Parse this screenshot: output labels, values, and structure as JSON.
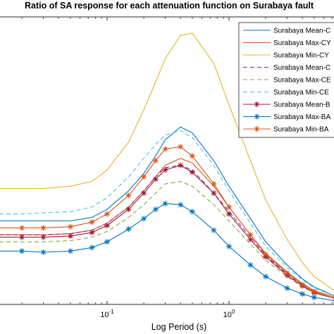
{
  "chart_data": {
    "type": "line",
    "title": "Ratio of SA response for each attenuation function on Surabaya fault",
    "xlabel": "Log Period (s)",
    "ylabel": "",
    "xscale": "log",
    "xlim": [
      0.01,
      10
    ],
    "x_ticks": [
      {
        "value": 0.1,
        "base": "10",
        "exp": "-1"
      },
      {
        "value": 1,
        "base": "10",
        "exp": "0"
      }
    ],
    "grid": false,
    "legend_position": "top-right",
    "series": [
      {
        "name": "Surabaya Mean-C",
        "color": "#0072BD",
        "style": "solid",
        "marker": "none",
        "x": [
          0.01,
          0.02,
          0.03,
          0.05,
          0.075,
          0.1,
          0.15,
          0.2,
          0.25,
          0.3,
          0.4,
          0.5,
          0.75,
          1,
          1.5,
          2,
          3,
          4,
          5,
          7.5,
          10
        ],
        "y": [
          0.72,
          0.72,
          0.72,
          0.72,
          0.75,
          0.82,
          0.98,
          1.13,
          1.28,
          1.42,
          1.53,
          1.48,
          1.24,
          1.02,
          0.74,
          0.54,
          0.34,
          0.22,
          0.15,
          0.07,
          0.03
        ]
      },
      {
        "name": "Surabaya Max-CY",
        "color": "#D95319",
        "style": "solid",
        "marker": "none",
        "x": [
          0.01,
          0.02,
          0.03,
          0.05,
          0.075,
          0.1,
          0.15,
          0.2,
          0.25,
          0.3,
          0.4,
          0.5,
          0.75,
          1,
          1.5,
          2,
          3,
          4,
          5,
          7.5,
          10
        ],
        "y": [
          0.6,
          0.6,
          0.6,
          0.61,
          0.64,
          0.7,
          0.84,
          0.98,
          1.1,
          1.2,
          1.26,
          1.22,
          1.02,
          0.84,
          0.6,
          0.44,
          0.28,
          0.18,
          0.12,
          0.06,
          0.02
        ]
      },
      {
        "name": "Surabaya Min-CY",
        "color": "#EDB120",
        "style": "solid",
        "marker": "none",
        "x": [
          0.01,
          0.02,
          0.03,
          0.05,
          0.075,
          0.1,
          0.15,
          0.2,
          0.25,
          0.3,
          0.4,
          0.5,
          0.75,
          1,
          1.5,
          2,
          3,
          4,
          5,
          7.5,
          10
        ],
        "y": [
          1.0,
          1.0,
          1.0,
          1.02,
          1.06,
          1.16,
          1.4,
          1.68,
          1.92,
          2.12,
          2.32,
          2.34,
          2.08,
          1.72,
          1.24,
          0.9,
          0.56,
          0.36,
          0.24,
          0.11,
          0.05
        ]
      },
      {
        "name": "Surabaya Mean-C",
        "color": "#7E2F8E",
        "style": "dashed",
        "marker": "none",
        "x": [
          0.01,
          0.02,
          0.03,
          0.05,
          0.075,
          0.1,
          0.15,
          0.2,
          0.25,
          0.3,
          0.4,
          0.5,
          0.75,
          1,
          1.5,
          2,
          3,
          4,
          5,
          7.5,
          10
        ],
        "y": [
          0.6,
          0.6,
          0.6,
          0.61,
          0.64,
          0.7,
          0.84,
          0.98,
          1.1,
          1.18,
          1.2,
          1.16,
          0.96,
          0.8,
          0.58,
          0.42,
          0.26,
          0.17,
          0.11,
          0.05,
          0.02
        ]
      },
      {
        "name": "Surabaya Max-CE",
        "color": "#77AC30",
        "style": "dashed",
        "marker": "none",
        "x": [
          0.01,
          0.02,
          0.03,
          0.05,
          0.075,
          0.1,
          0.15,
          0.2,
          0.25,
          0.3,
          0.4,
          0.5,
          0.75,
          1,
          1.5,
          2,
          3,
          4,
          5,
          7.5,
          10
        ],
        "y": [
          0.54,
          0.54,
          0.54,
          0.55,
          0.58,
          0.63,
          0.75,
          0.86,
          0.96,
          1.04,
          1.06,
          1.02,
          0.86,
          0.72,
          0.52,
          0.38,
          0.24,
          0.15,
          0.1,
          0.05,
          0.02
        ]
      },
      {
        "name": "Surabaya Min-CE",
        "color": "#4DBEEE",
        "style": "dashed",
        "marker": "none",
        "x": [
          0.01,
          0.02,
          0.03,
          0.05,
          0.075,
          0.1,
          0.15,
          0.2,
          0.25,
          0.3,
          0.4,
          0.5,
          0.75,
          1,
          1.5,
          2,
          3,
          4,
          5,
          7.5,
          10
        ],
        "y": [
          0.78,
          0.78,
          0.79,
          0.8,
          0.84,
          0.92,
          1.1,
          1.26,
          1.38,
          1.46,
          1.5,
          1.44,
          1.2,
          0.98,
          0.7,
          0.5,
          0.32,
          0.21,
          0.14,
          0.07,
          0.03
        ]
      },
      {
        "name": "Surabaya Mean-B",
        "color": "#A2142F",
        "style": "solid",
        "marker": "star",
        "x": [
          0.01,
          0.02,
          0.03,
          0.05,
          0.075,
          0.1,
          0.15,
          0.2,
          0.25,
          0.3,
          0.4,
          0.5,
          0.75,
          1,
          1.5,
          2,
          3,
          4,
          5,
          7.5,
          10
        ],
        "y": [
          0.58,
          0.58,
          0.58,
          0.59,
          0.62,
          0.68,
          0.82,
          0.96,
          1.08,
          1.16,
          1.2,
          1.14,
          0.96,
          0.78,
          0.56,
          0.41,
          0.25,
          0.16,
          0.1,
          0.05,
          0.02
        ]
      },
      {
        "name": "Surabaya Max-BA",
        "color": "#0072BD",
        "style": "solid",
        "marker": "star",
        "x": [
          0.01,
          0.02,
          0.03,
          0.05,
          0.075,
          0.1,
          0.15,
          0.2,
          0.25,
          0.3,
          0.4,
          0.5,
          0.75,
          1,
          1.5,
          2,
          3,
          4,
          5,
          7.5,
          10
        ],
        "y": [
          0.46,
          0.46,
          0.45,
          0.46,
          0.49,
          0.54,
          0.65,
          0.74,
          0.82,
          0.87,
          0.86,
          0.8,
          0.64,
          0.5,
          0.34,
          0.24,
          0.14,
          0.09,
          0.06,
          0.03,
          0.01
        ]
      },
      {
        "name": "Surabaya Min-BA",
        "color": "#D95319",
        "style": "solid",
        "marker": "star",
        "x": [
          0.01,
          0.02,
          0.03,
          0.05,
          0.075,
          0.1,
          0.15,
          0.2,
          0.25,
          0.3,
          0.4,
          0.5,
          0.75,
          1,
          1.5,
          2,
          3,
          4,
          5,
          7.5,
          10
        ],
        "y": [
          0.66,
          0.66,
          0.66,
          0.67,
          0.71,
          0.78,
          0.94,
          1.1,
          1.24,
          1.34,
          1.36,
          1.28,
          1.04,
          0.84,
          0.6,
          0.43,
          0.27,
          0.17,
          0.11,
          0.05,
          0.02
        ]
      }
    ]
  }
}
